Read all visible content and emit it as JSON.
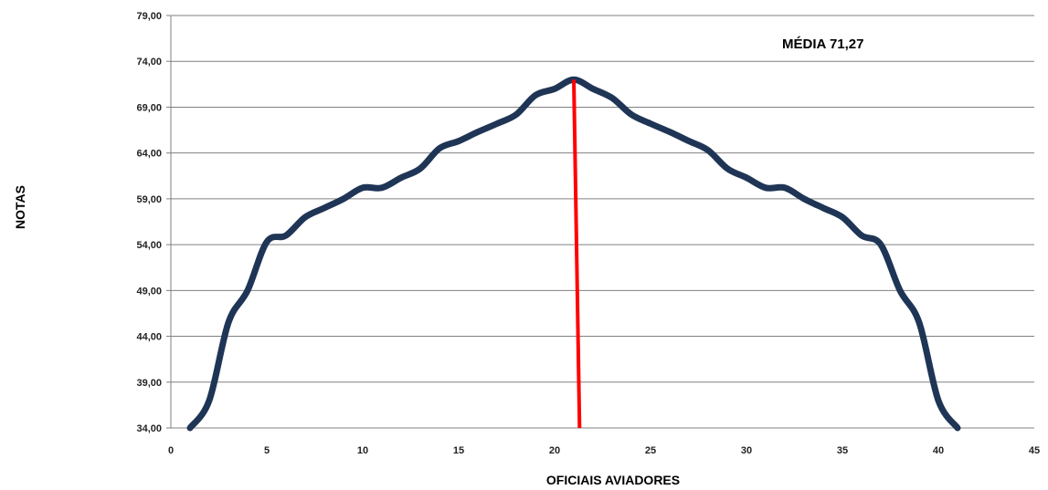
{
  "chart_data": {
    "type": "line",
    "xlabel": "OFICIAIS AVIADORES",
    "ylabel": "NOTAS",
    "annotation": "MÉDIA 71,27",
    "xlim": [
      0,
      45
    ],
    "ylim": [
      34,
      79
    ],
    "x_ticks": [
      "0",
      "5",
      "10",
      "15",
      "20",
      "25",
      "30",
      "35",
      "40",
      "45"
    ],
    "y_ticks": [
      "34,00",
      "39,00",
      "44,00",
      "49,00",
      "54,00",
      "59,00",
      "64,00",
      "69,00",
      "74,00",
      "79,00"
    ],
    "grid": "horizontal",
    "colors": {
      "series": "#1f3556",
      "mean_line": "#ff0000",
      "grid": "#808080"
    },
    "series": [
      {
        "x": [
          1,
          2,
          3,
          4,
          5,
          6,
          7,
          8,
          9,
          10,
          11,
          12,
          13,
          14,
          15,
          16,
          17,
          18,
          19,
          20,
          21,
          22,
          23,
          24,
          25,
          26,
          27,
          28,
          29,
          30,
          31,
          32,
          33,
          34,
          35,
          36,
          37,
          38,
          39,
          40,
          41
        ],
        "values": [
          34.0,
          37.0,
          45.5,
          49.0,
          54.3,
          55.0,
          57.0,
          58.0,
          59.0,
          60.2,
          60.2,
          61.3,
          62.3,
          64.5,
          65.3,
          66.3,
          67.2,
          68.2,
          70.3,
          71.0,
          72.0,
          71.0,
          70.0,
          68.2,
          67.2,
          66.3,
          65.3,
          64.3,
          62.3,
          61.3,
          60.2,
          60.2,
          59.0,
          58.0,
          57.0,
          55.0,
          54.0,
          49.0,
          45.5,
          37.0,
          34.0
        ]
      }
    ],
    "mean_line": {
      "x": [
        21,
        21.3
      ],
      "y": [
        72.0,
        34.0
      ]
    }
  }
}
